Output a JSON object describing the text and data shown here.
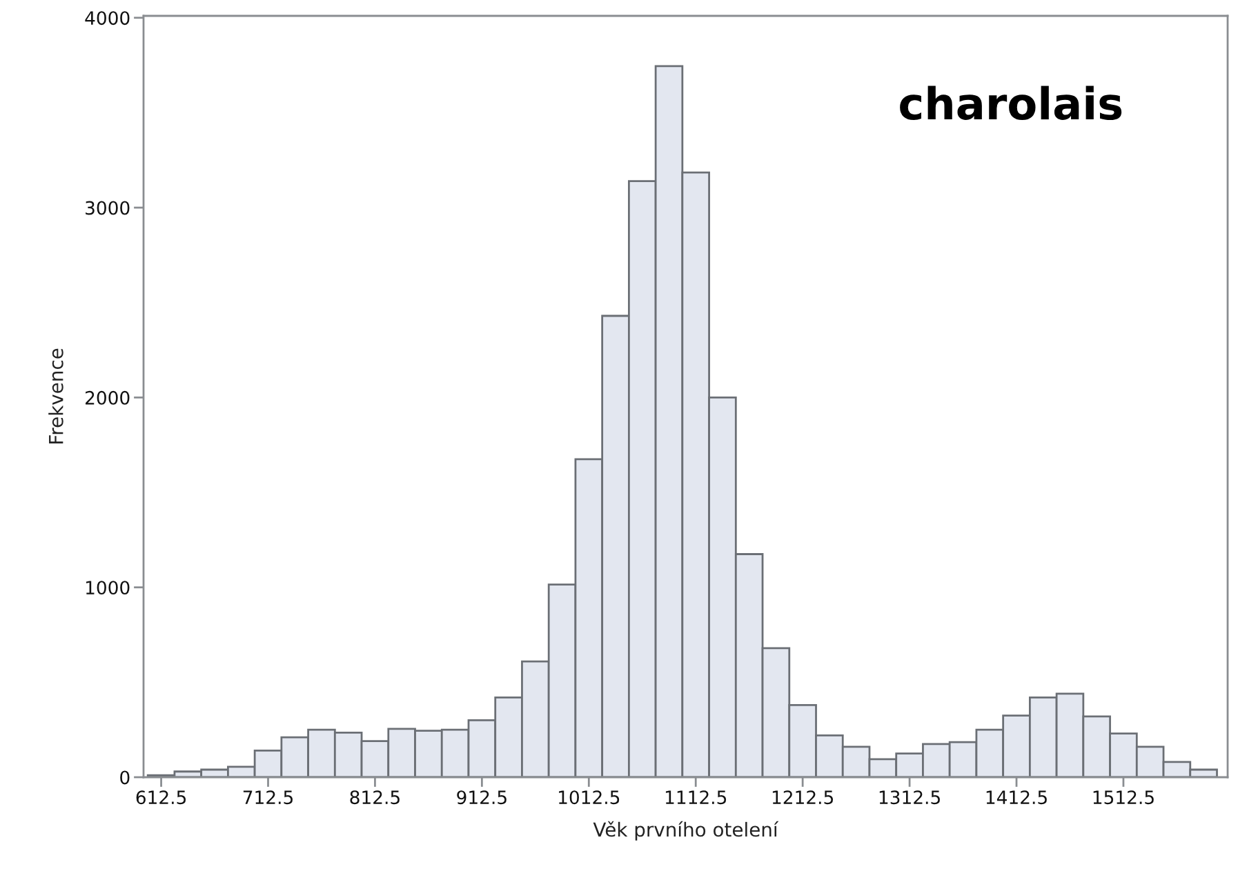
{
  "chart_data": {
    "type": "histogram",
    "xlabel": "Věk prvního otelení",
    "ylabel": "Frekvence",
    "annotations": [
      "charolais"
    ],
    "bins": [
      600,
      625,
      650,
      675,
      700,
      725,
      750,
      775,
      800,
      825,
      850,
      875,
      900,
      925,
      950,
      975,
      1000,
      1025,
      1050,
      1075,
      1100,
      1125,
      1150,
      1175,
      1200,
      1225,
      1250,
      1275,
      1300,
      1325,
      1350,
      1375,
      1400,
      1425,
      1450,
      1475,
      1500,
      1525,
      1550,
      1575,
      1600
    ],
    "values": [
      10,
      30,
      40,
      55,
      140,
      210,
      250,
      235,
      190,
      255,
      245,
      250,
      300,
      420,
      610,
      1015,
      1675,
      2430,
      3140,
      3745,
      3185,
      2000,
      1175,
      680,
      380,
      220,
      160,
      95,
      125,
      175,
      185,
      250,
      325,
      420,
      440,
      320,
      230,
      160,
      80,
      40
    ],
    "color": "#e3e7f0",
    "xlim": [
      596,
      1610
    ],
    "ylim": [
      0,
      4010
    ],
    "xticks": [
      612.5,
      712.5,
      812.5,
      912.5,
      1012.5,
      1112.5,
      1212.5,
      1312.5,
      1412.5,
      1512.5
    ],
    "yticks": [
      0,
      1000,
      2000,
      3000,
      4000
    ],
    "grid": false
  }
}
